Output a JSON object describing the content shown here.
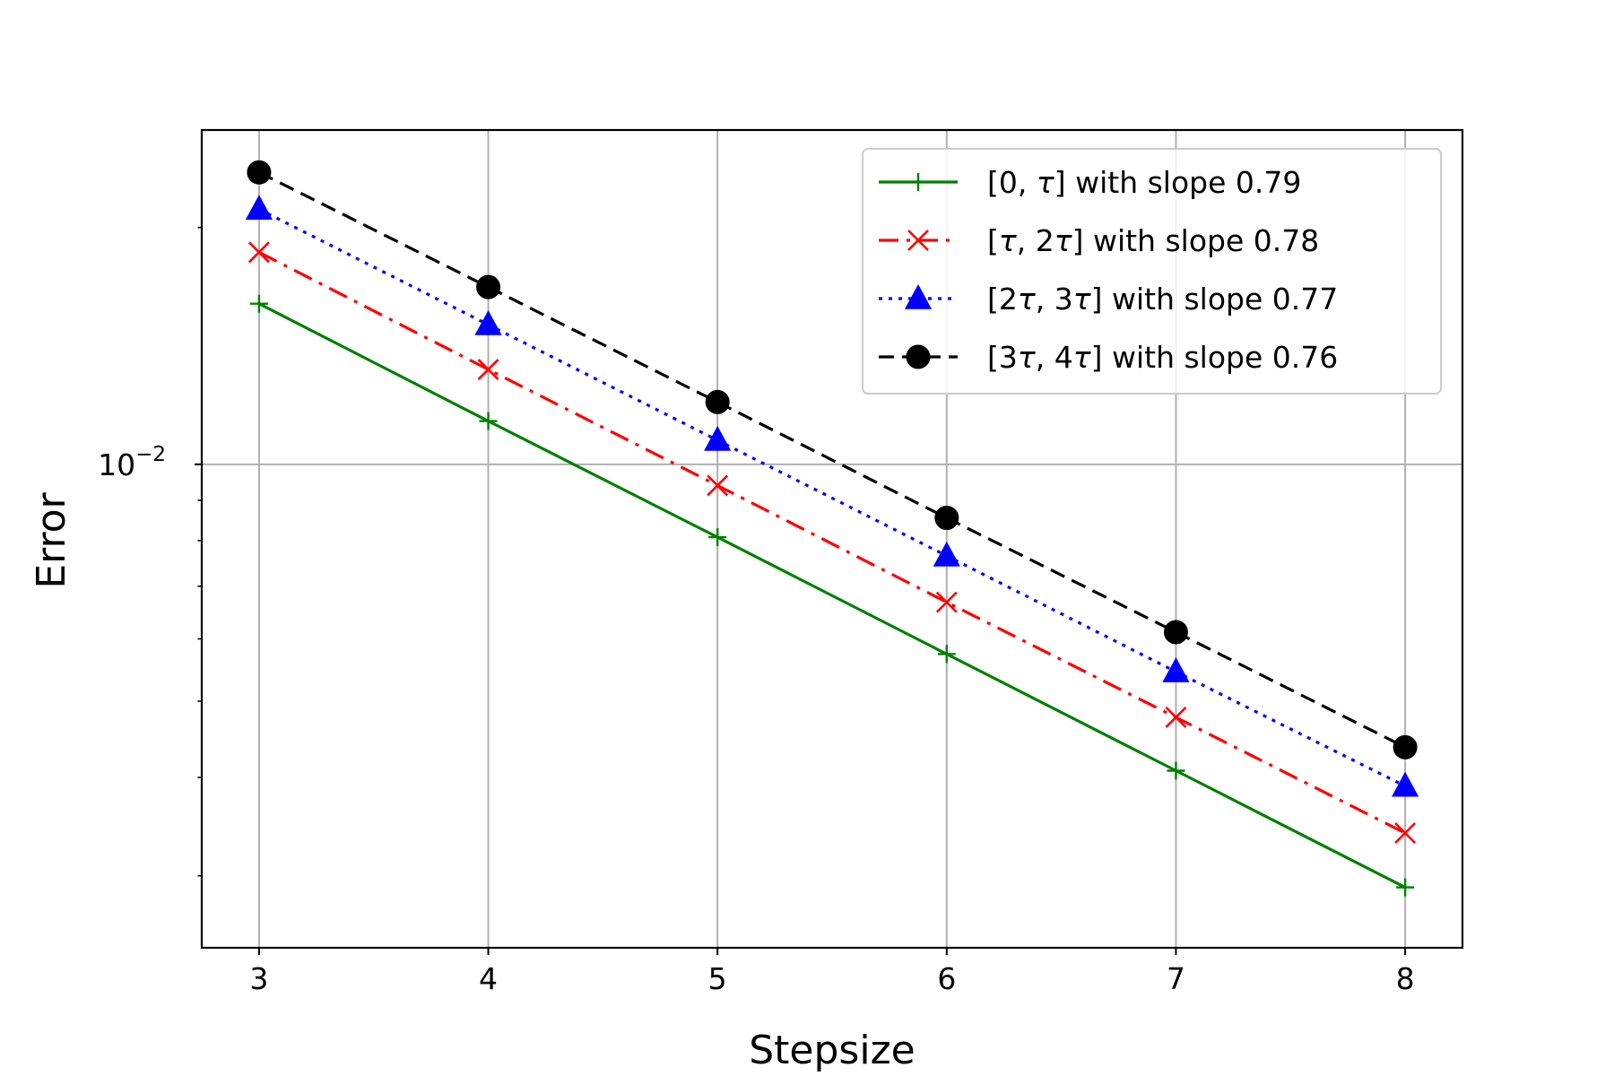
{
  "chart_data": {
    "type": "line",
    "title": "",
    "xlabel": "Stepsize",
    "ylabel": "Error",
    "x": [
      3,
      4,
      5,
      6,
      7,
      8
    ],
    "x_ticks": [
      "3",
      "4",
      "5",
      "6",
      "7",
      "8"
    ],
    "xlim": [
      2.75,
      8.25
    ],
    "y_scale": "log",
    "ylim": [
      0.00243,
      0.0266
    ],
    "y_major_ticks": [
      {
        "value": 0.01,
        "label": "10",
        "exponent": "−2"
      }
    ],
    "grid": true,
    "legend_position": "top-right",
    "series": [
      {
        "name_parts": [
          "[0, ",
          "τ",
          "] with slope 0.79"
        ],
        "color": "#008000",
        "linestyle": "solid",
        "marker": "plus",
        "values": [
          0.016,
          0.01135,
          0.00808,
          0.00574,
          0.00408,
          0.0029
        ]
      },
      {
        "name_parts": [
          "[",
          "τ",
          ", 2",
          "τ",
          "] with slope 0.78"
        ],
        "color": "#ff0000",
        "linestyle": "dashdot",
        "marker": "x",
        "values": [
          0.0186,
          0.0132,
          0.0094,
          0.00668,
          0.00477,
          0.0034
        ]
      },
      {
        "name_parts": [
          "[2",
          "τ",
          ", 3",
          "τ",
          "] with slope 0.77"
        ],
        "color": "#0000ff",
        "linestyle": "dotted",
        "marker": "triangle",
        "values": [
          0.0211,
          0.01505,
          0.01073,
          0.00765,
          0.00545,
          0.0039
        ]
      },
      {
        "name_parts": [
          "[3",
          "τ",
          ", 4",
          "τ",
          "] with slope 0.76"
        ],
        "color": "#000000",
        "linestyle": "dashed",
        "marker": "circle",
        "values": [
          0.0235,
          0.0168,
          0.012,
          0.00855,
          0.00612,
          0.00437
        ]
      }
    ]
  }
}
